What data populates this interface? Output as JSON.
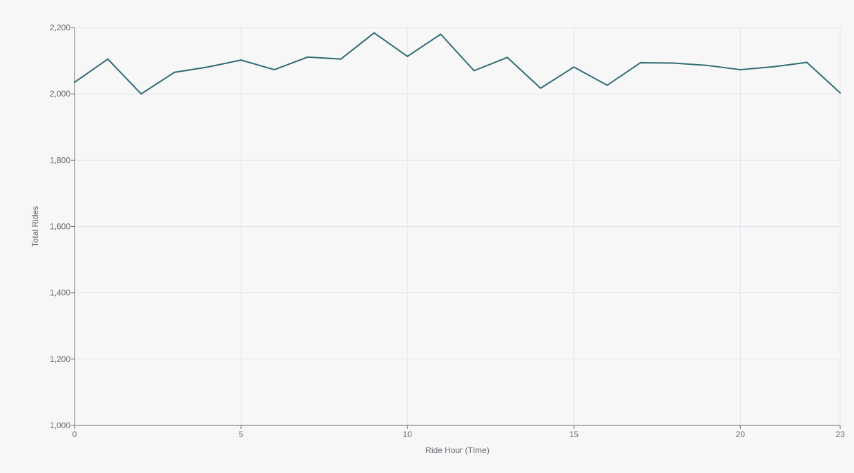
{
  "chart_data": {
    "type": "line",
    "title": "",
    "xlabel": "Ride Hour (TIme)",
    "ylabel": "Total Rides",
    "xlim": [
      0,
      23
    ],
    "ylim": [
      1000,
      2200
    ],
    "x_ticks": [
      0,
      5,
      10,
      15,
      20,
      23
    ],
    "x_tick_labels": [
      "0",
      "5",
      "10",
      "15",
      "20",
      "23"
    ],
    "y_ticks": [
      1000,
      1200,
      1400,
      1600,
      1800,
      2000,
      2200
    ],
    "y_tick_labels": [
      "1,000",
      "1,200",
      "1,400",
      "1,600",
      "1,800",
      "2,000",
      "2,200"
    ],
    "grid": true,
    "legend": "none",
    "colors": {
      "line": "#2e6b74",
      "background": "#f7f7f7",
      "grid": "#e4e5ee",
      "axis": "#6f6f6f",
      "text": "#666a73"
    },
    "x": [
      0,
      1,
      2,
      3,
      4,
      5,
      6,
      7,
      8,
      9,
      10,
      11,
      12,
      13,
      14,
      15,
      16,
      17,
      18,
      19,
      20,
      21,
      22,
      23
    ],
    "series": [
      {
        "values": [
          2035,
          2105,
          2000,
          2065,
          2081,
          2102,
          2073,
          2111,
          2105,
          2184,
          2113,
          2180,
          2070,
          2110,
          2017,
          2081,
          2026,
          2094,
          2093,
          2086,
          2073,
          2082,
          2095,
          2003
        ]
      }
    ]
  }
}
